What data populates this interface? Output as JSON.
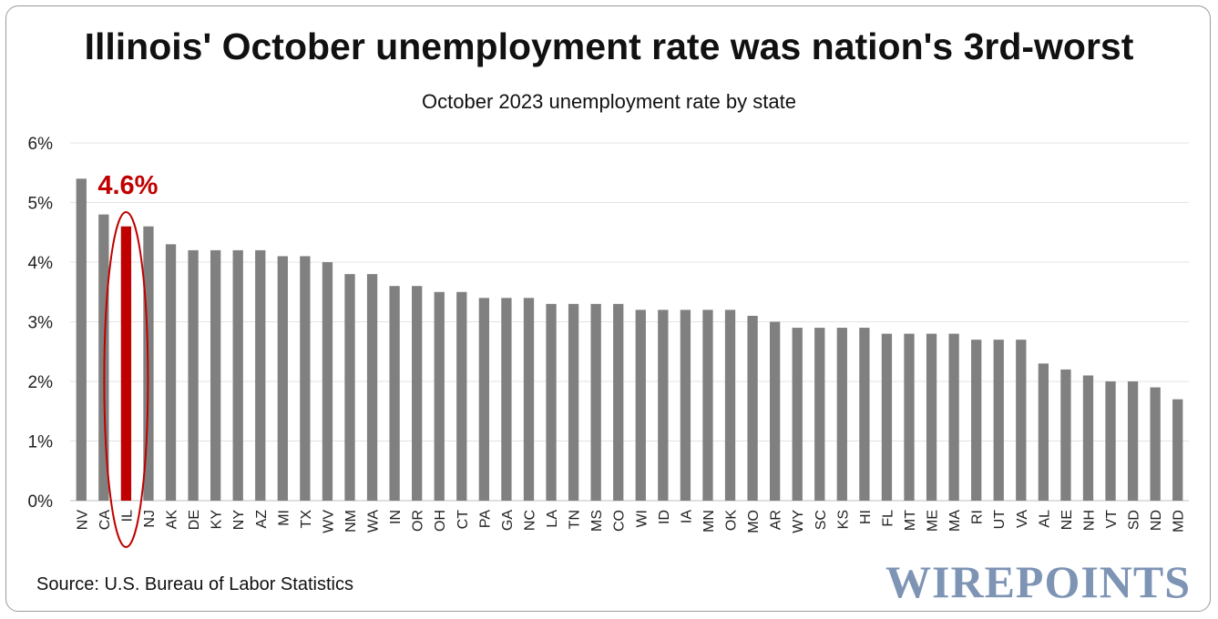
{
  "chart_data": {
    "type": "bar",
    "title": "Illinois' October unemployment rate was nation's 3rd-worst",
    "subtitle": "October 2023 unemployment rate by state",
    "xlabel": "",
    "ylabel": "",
    "ylim": [
      0,
      6
    ],
    "yticks": [
      "0%",
      "1%",
      "2%",
      "3%",
      "4%",
      "5%",
      "6%"
    ],
    "grid": true,
    "categories": [
      "NV",
      "CA",
      "IL",
      "NJ",
      "AK",
      "DE",
      "KY",
      "NY",
      "AZ",
      "MI",
      "TX",
      "WV",
      "NM",
      "WA",
      "IN",
      "OR",
      "OH",
      "CT",
      "PA",
      "GA",
      "NC",
      "LA",
      "TN",
      "MS",
      "CO",
      "WI",
      "ID",
      "IA",
      "MN",
      "OK",
      "MO",
      "AR",
      "WY",
      "SC",
      "KS",
      "HI",
      "FL",
      "MT",
      "ME",
      "MA",
      "RI",
      "UT",
      "VA",
      "AL",
      "NE",
      "NH",
      "VT",
      "SD",
      "ND",
      "MD"
    ],
    "values": [
      5.4,
      4.8,
      4.6,
      4.6,
      4.3,
      4.2,
      4.2,
      4.2,
      4.2,
      4.1,
      4.1,
      4.0,
      3.8,
      3.8,
      3.6,
      3.6,
      3.5,
      3.5,
      3.4,
      3.4,
      3.4,
      3.3,
      3.3,
      3.3,
      3.3,
      3.2,
      3.2,
      3.2,
      3.2,
      3.2,
      3.1,
      3.0,
      2.9,
      2.9,
      2.9,
      2.9,
      2.8,
      2.8,
      2.8,
      2.8,
      2.7,
      2.7,
      2.7,
      2.3,
      2.2,
      2.1,
      2.0,
      2.0,
      1.9,
      1.7
    ],
    "highlight": {
      "category": "IL",
      "label": "4.6%",
      "color": "#c00000"
    },
    "bar_color": "#808080"
  },
  "source": "Source: U.S. Bureau of Labor Statistics",
  "logo_text": "WIREPOINTS"
}
